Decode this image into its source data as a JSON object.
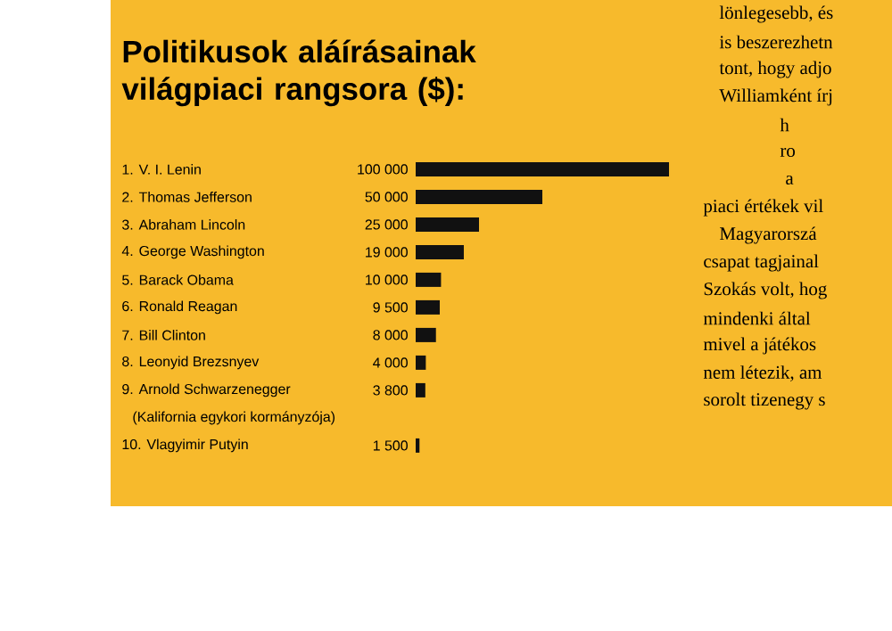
{
  "chart_data": {
    "type": "bar",
    "orientation": "horizontal",
    "title": "Politikusok aláírásainak világpiaci rangsora ($):",
    "categories": [
      "1. V. I. Lenin",
      "2. Thomas Jefferson",
      "3. Abraham Lincoln",
      "4. George Washington",
      "5. Barack Obama",
      "6. Ronald Reagan",
      "7. Bill Clinton",
      "8. Leonyid Brezsnyev",
      "9. Arnold Schwarzenegger",
      "10. Vlagyimir Putyin"
    ],
    "values": [
      100000,
      50000,
      25000,
      19000,
      10000,
      9500,
      8000,
      4000,
      3800,
      1500
    ],
    "value_labels": [
      "100 000",
      "50 000",
      "25 000",
      "19 000",
      "10 000",
      "9 500",
      "8 000",
      "4 000",
      "3 800",
      "1 500"
    ],
    "color": "#111111",
    "annotations": [
      "(Kalifornia egykori kormányzója)",
      "lönlegesebb, és",
      "is beszerezhetn",
      "tont, hogy adjo",
      "Williamként írj",
      "h",
      "ro",
      "a",
      "piaci értékek vil",
      "Magyarorszá",
      "csapat tagjainal",
      "Szokás volt, hog",
      "mindenki által",
      "mivel a játékos",
      "nem létezik, am",
      "sorolt tizenegy s"
    ]
  }
}
